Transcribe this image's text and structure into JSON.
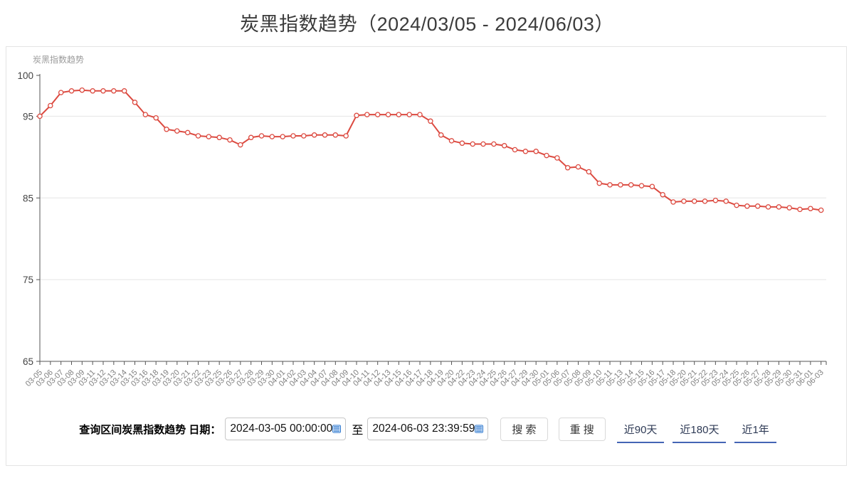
{
  "page": {
    "title": "炭黑指数趋势（2024/03/05 - 2024/06/03）"
  },
  "chart_data": {
    "type": "line",
    "title": "炭黑指数趋势",
    "series_name": "炭黑指数趋势",
    "categories": [
      "03-05",
      "03-06",
      "03-07",
      "03-08",
      "03-09",
      "03-11",
      "03-12",
      "03-13",
      "03-14",
      "03-15",
      "03-16",
      "03-18",
      "03-19",
      "03-20",
      "03-21",
      "03-22",
      "03-23",
      "03-25",
      "03-26",
      "03-27",
      "03-28",
      "03-29",
      "03-30",
      "04-01",
      "04-02",
      "04-03",
      "04-04",
      "04-07",
      "04-08",
      "04-09",
      "04-10",
      "04-11",
      "04-12",
      "04-13",
      "04-15",
      "04-16",
      "04-17",
      "04-18",
      "04-19",
      "04-20",
      "04-22",
      "04-23",
      "04-24",
      "04-25",
      "04-26",
      "04-27",
      "04-29",
      "04-30",
      "05-01",
      "05-06",
      "05-07",
      "05-08",
      "05-09",
      "05-10",
      "05-11",
      "05-13",
      "05-14",
      "05-15",
      "05-16",
      "05-17",
      "05-18",
      "05-20",
      "05-21",
      "05-22",
      "05-23",
      "05-24",
      "05-25",
      "05-26",
      "05-27",
      "05-28",
      "05-29",
      "05-30",
      "05-31",
      "06-01",
      "06-03"
    ],
    "values": [
      95.0,
      96.3,
      97.9,
      98.1,
      98.2,
      98.1,
      98.1,
      98.1,
      98.1,
      96.7,
      95.2,
      94.8,
      93.4,
      93.2,
      93.0,
      92.6,
      92.5,
      92.4,
      92.1,
      91.5,
      92.4,
      92.6,
      92.5,
      92.5,
      92.6,
      92.6,
      92.7,
      92.7,
      92.7,
      92.6,
      95.1,
      95.2,
      95.2,
      95.2,
      95.2,
      95.2,
      95.2,
      94.4,
      92.7,
      92.0,
      91.7,
      91.6,
      91.6,
      91.6,
      91.4,
      90.9,
      90.7,
      90.7,
      90.2,
      89.9,
      88.7,
      88.8,
      88.2,
      86.8,
      86.6,
      86.6,
      86.6,
      86.5,
      86.4,
      85.4,
      84.5,
      84.6,
      84.6,
      84.6,
      84.7,
      84.6,
      84.1,
      84.0,
      84.0,
      83.9,
      83.9,
      83.8,
      83.6,
      83.7,
      83.5
    ],
    "ylim": [
      65,
      100
    ],
    "yticks": [
      65,
      75,
      85,
      95,
      100
    ],
    "grid": true,
    "legend_position": "top-left",
    "line_color": "#dc4a40",
    "marker": "hollow-circle",
    "axis_color": "#555555",
    "grid_color": "#e5e5e5",
    "x_label_color": "#808080",
    "y_label_color": "#444444",
    "legend_color": "#9b9b9b"
  },
  "form": {
    "label": "查询区间炭黑指数趋势 日期：",
    "start_value": "2024-03-05 00:00:00",
    "separator": "至",
    "end_value": "2024-06-03 23:39:59",
    "search_button": "搜 索",
    "research_button": "重 搜",
    "quick_ranges": [
      {
        "label": "近90天"
      },
      {
        "label": "近180天"
      },
      {
        "label": "近1年"
      }
    ],
    "calendar_icon_color": "#2c77cf",
    "link_underline_color": "#4465b5"
  }
}
